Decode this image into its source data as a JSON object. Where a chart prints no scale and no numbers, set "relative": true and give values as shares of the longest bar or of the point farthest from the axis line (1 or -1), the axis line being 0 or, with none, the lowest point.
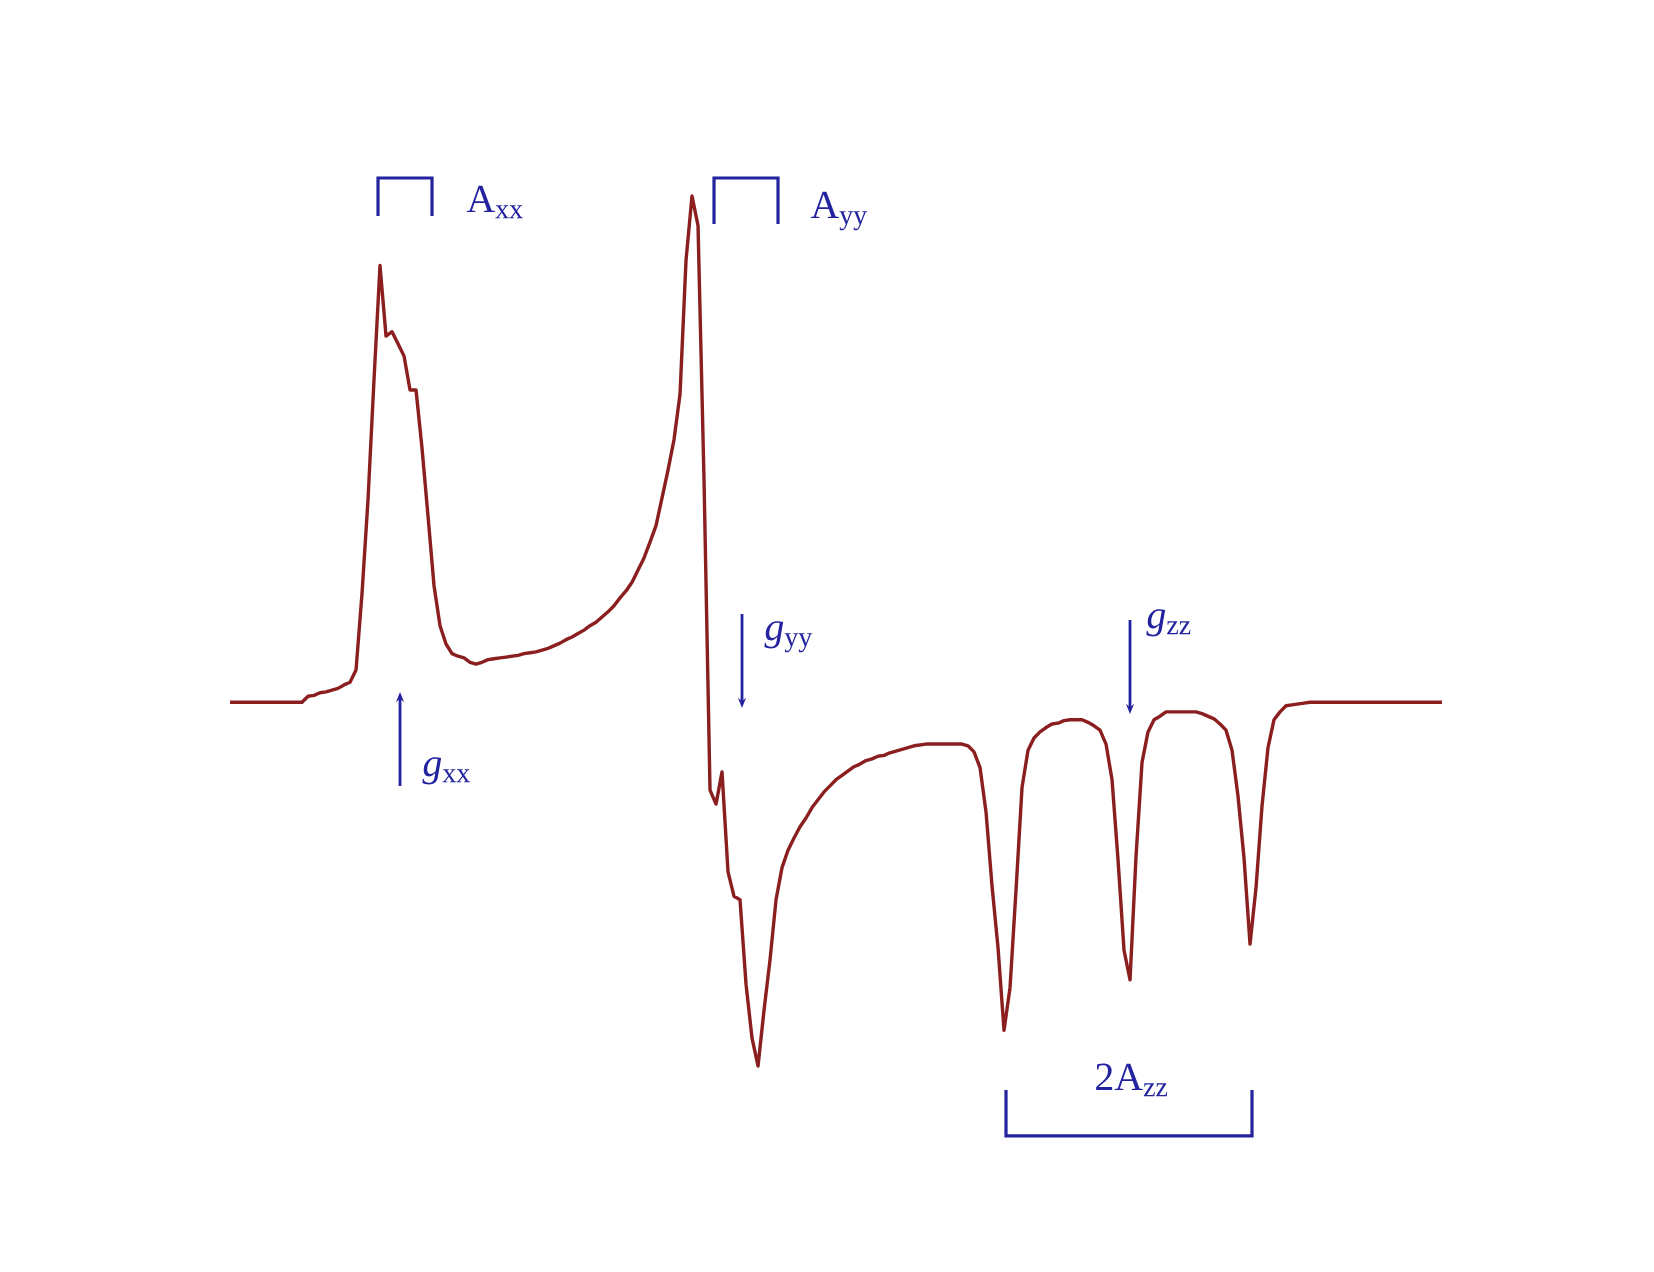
{
  "chart_data": {
    "type": "line",
    "relative": true,
    "color": "#8b1f1f",
    "annotations": [
      "A$_{xx}$",
      "A$_{yy}$",
      "*g*$_{xx}$",
      "*g*$_{yy}$",
      "*g*$_{zz}$",
      "2A$_{zz}$"
    ],
    "categories": [
      null,
      null,
      null,
      null,
      null,
      null,
      null,
      null,
      null,
      null,
      null,
      null,
      null,
      null,
      null,
      null,
      null,
      null,
      null,
      null,
      null,
      null,
      null,
      null,
      null,
      null,
      null,
      null,
      null,
      null,
      null,
      null,
      null,
      null,
      null,
      null,
      null,
      null,
      null,
      null,
      null,
      null,
      null,
      null,
      null,
      null,
      null,
      null,
      null,
      null,
      null,
      null,
      null,
      null,
      null,
      null,
      null,
      null,
      null,
      null,
      null,
      null,
      null,
      null,
      null,
      null,
      null,
      null,
      null,
      null,
      null,
      null,
      null,
      null,
      null,
      null,
      null,
      null,
      null,
      null,
      null,
      null,
      null,
      null,
      null,
      null,
      null,
      null,
      null,
      null,
      null,
      null,
      null,
      null,
      null,
      null,
      null,
      null,
      null,
      null,
      null,
      null,
      null,
      null,
      null,
      null,
      null,
      null,
      null,
      null,
      null,
      null,
      null,
      null,
      null,
      null,
      null,
      null,
      null,
      null,
      null,
      null,
      null,
      null,
      null,
      null,
      null,
      null,
      null,
      null,
      null,
      null,
      null,
      null,
      null,
      null,
      null,
      null,
      null,
      null,
      null,
      null,
      null,
      null,
      null,
      null,
      null,
      null,
      null,
      null,
      null,
      null,
      null,
      null,
      null,
      null,
      null,
      null,
      null,
      null,
      null,
      null,
      null,
      null,
      null,
      null,
      null,
      null,
      null,
      null,
      null,
      null,
      null,
      null,
      null,
      null,
      null,
      null,
      null,
      null,
      null,
      null,
      null,
      null,
      null,
      null,
      null,
      null,
      null,
      null,
      null,
      null,
      null,
      null,
      null,
      null,
      null,
      null,
      null,
      null,
      null,
      null,
      null
    ],
    "values": [
      0.418,
      0.418,
      0.418,
      0.418,
      0.418,
      0.418,
      0.418,
      0.418,
      0.418,
      0.418,
      0.418,
      0.418,
      0.418,
      0.425,
      0.426,
      0.429,
      0.43,
      0.432,
      0.434,
      0.438,
      0.441,
      0.455,
      0.543,
      0.651,
      0.789,
      0.92,
      0.839,
      0.844,
      0.83,
      0.816,
      0.777,
      0.777,
      0.71,
      0.632,
      0.552,
      0.506,
      0.485,
      0.474,
      0.471,
      0.469,
      0.464,
      0.462,
      0.464,
      0.467,
      0.468,
      0.469,
      0.47,
      0.471,
      0.472,
      0.474,
      0.475,
      0.476,
      0.478,
      0.48,
      0.483,
      0.486,
      0.49,
      0.493,
      0.497,
      0.501,
      0.506,
      0.51,
      0.516,
      0.522,
      0.529,
      0.538,
      0.546,
      0.556,
      0.57,
      0.584,
      0.602,
      0.621,
      0.653,
      0.685,
      0.72,
      0.772,
      0.926,
      1,
      0.966,
      0.674,
      0.317,
      0.301,
      0.338,
      0.223,
      0.195,
      0.191,
      0.094,
      0.032,
      0,
      0.064,
      0.122,
      0.191,
      0.228,
      0.248,
      0.262,
      0.275,
      0.285,
      0.297,
      0.306,
      0.315,
      0.322,
      0.329,
      0.334,
      0.339,
      0.344,
      0.347,
      0.351,
      0.353,
      0.356,
      0.357,
      0.36,
      0.362,
      0.364,
      0.366,
      0.368,
      0.369,
      0.37,
      0.37,
      0.37,
      0.37,
      0.37,
      0.37,
      0.37,
      0.368,
      0.361,
      0.343,
      0.292,
      0.207,
      0.136,
      0.041,
      0.09,
      0.202,
      0.32,
      0.363,
      0.377,
      0.384,
      0.389,
      0.393,
      0.394,
      0.397,
      0.398,
      0.398,
      0.398,
      0.395,
      0.391,
      0.386,
      0.37,
      0.329,
      0.237,
      0.133,
      0.099,
      0.241,
      0.349,
      0.384,
      0.398,
      0.402,
      0.407,
      0.407,
      0.407,
      0.407,
      0.407,
      0.407,
      0.405,
      0.402,
      0.399,
      0.393,
      0.386,
      0.363,
      0.31,
      0.239,
      0.14,
      0.205,
      0.299,
      0.366,
      0.398,
      0.407,
      0.414,
      0.415,
      0.416,
      0.417,
      0.418,
      0.418,
      0.418,
      0.418,
      0.418,
      0.418,
      0.418,
      0.418,
      0.418,
      0.418,
      0.418,
      0.418,
      0.418,
      0.418,
      0.418,
      0.418,
      0.418,
      0.418,
      0.418,
      0.418,
      0.418,
      0.418,
      0.418
    ]
  }
}
